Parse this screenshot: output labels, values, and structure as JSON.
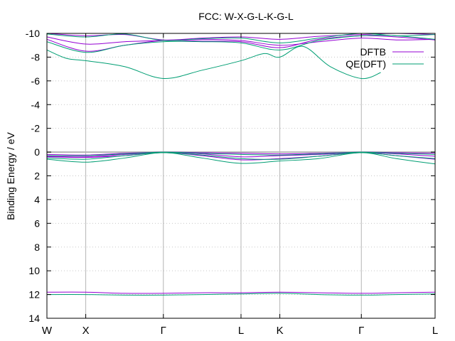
{
  "chart_data": {
    "type": "line",
    "title": "FCC: W-X-G-L-K-G-L",
    "ylabel": "Binding Energy / eV",
    "xlabel": "",
    "ylim": [
      14,
      -10
    ],
    "y_reversed": true,
    "xlim": [
      0,
      10
    ],
    "grid": true,
    "legend": "top-right",
    "y_ticks": [
      {
        "value": -10,
        "label": "-10"
      },
      {
        "value": -8,
        "label": "-8"
      },
      {
        "value": -6,
        "label": "-6"
      },
      {
        "value": -4,
        "label": "-4"
      },
      {
        "value": -2,
        "label": "-2"
      },
      {
        "value": 0,
        "label": "0"
      },
      {
        "value": 2,
        "label": "2"
      },
      {
        "value": 4,
        "label": "4"
      },
      {
        "value": 6,
        "label": "6"
      },
      {
        "value": 8,
        "label": "8"
      },
      {
        "value": 10,
        "label": "10"
      },
      {
        "value": 12,
        "label": "12"
      },
      {
        "value": 14,
        "label": "14"
      }
    ],
    "x_ticks": [
      {
        "value": 0,
        "label": "W"
      },
      {
        "value": 1,
        "label": "X"
      },
      {
        "value": 3,
        "label": "Γ"
      },
      {
        "value": 5,
        "label": "L"
      },
      {
        "value": 6,
        "label": "K"
      },
      {
        "value": 8.1,
        "label": "Γ"
      },
      {
        "value": 10,
        "label": "L"
      }
    ],
    "series": [
      {
        "name": "DFTB",
        "color": "#9400d3",
        "bands": [
          {
            "x": [
              0,
              1,
              2,
              3,
              4,
              5,
              6,
              7,
              8.1,
              9,
              10
            ],
            "y": [
              11.8,
              11.8,
              11.9,
              11.9,
              11.85,
              11.85,
              11.8,
              11.85,
              11.9,
              11.85,
              11.8
            ]
          },
          {
            "x": [
              0,
              1,
              2,
              3,
              4,
              5,
              6,
              7,
              8.1,
              9,
              10
            ],
            "y": [
              0.4,
              0.45,
              0.3,
              0.05,
              0.3,
              0.65,
              0.55,
              0.35,
              0.05,
              0.3,
              0.6
            ]
          },
          {
            "x": [
              0,
              1,
              2,
              3,
              4,
              5,
              6,
              7,
              8.1,
              9,
              10
            ],
            "y": [
              0.35,
              0.4,
              0.2,
              0.05,
              0.15,
              0.4,
              0.3,
              0.2,
              0.05,
              0.15,
              0.35
            ]
          },
          {
            "x": [
              0,
              1,
              2,
              3,
              4,
              5,
              6,
              7,
              8.1,
              9,
              10
            ],
            "y": [
              0.2,
              0.25,
              0.1,
              0.0,
              0.05,
              0.1,
              0.15,
              0.1,
              0.0,
              0.05,
              0.1
            ]
          },
          {
            "x": [
              0,
              1,
              2,
              3,
              4,
              5,
              6,
              7,
              8.1,
              9,
              10
            ],
            "y": [
              -9.7,
              -9.1,
              -9.3,
              -9.4,
              -9.5,
              -9.4,
              -9.0,
              -9.3,
              -9.6,
              -9.45,
              -9.5
            ]
          },
          {
            "x": [
              0,
              1,
              2,
              3,
              4,
              5,
              6,
              7,
              8.1,
              9,
              10
            ],
            "y": [
              -9.5,
              -8.5,
              -9.0,
              -9.4,
              -9.35,
              -9.3,
              -8.8,
              -9.5,
              -9.8,
              -9.7,
              -9.45
            ]
          },
          {
            "x": [
              0,
              1,
              2,
              3,
              4,
              5,
              6,
              7,
              8.1,
              9,
              10
            ],
            "y": [
              -10.0,
              -9.8,
              -9.9,
              -9.45,
              -9.6,
              -9.7,
              -9.5,
              -9.75,
              -9.9,
              -10.0,
              -9.9
            ]
          }
        ]
      },
      {
        "name": "QE(DFT)",
        "color": "#009e73",
        "bands": [
          {
            "x": [
              0,
              1,
              2,
              3,
              4,
              5,
              6,
              7,
              8.1,
              9,
              10
            ],
            "y": [
              12.0,
              12.0,
              12.05,
              12.05,
              12.0,
              11.95,
              11.9,
              12.0,
              12.05,
              12.0,
              11.95
            ]
          },
          {
            "x": [
              0,
              1,
              2,
              3,
              4,
              5,
              6,
              7,
              8.1,
              9,
              10
            ],
            "y": [
              0.6,
              0.85,
              0.5,
              0.05,
              0.5,
              0.95,
              0.75,
              0.55,
              0.05,
              0.55,
              1.0
            ]
          },
          {
            "x": [
              0,
              1,
              2,
              3,
              4,
              5,
              6,
              7,
              8.1,
              9,
              10
            ],
            "y": [
              0.5,
              0.6,
              0.3,
              0.05,
              0.25,
              0.55,
              0.6,
              0.35,
              0.05,
              0.3,
              0.55
            ]
          },
          {
            "x": [
              0,
              1,
              2,
              3,
              4,
              5,
              6,
              7,
              8.1,
              9,
              10
            ],
            "y": [
              0.3,
              0.3,
              0.15,
              0.0,
              0.1,
              0.2,
              0.25,
              0.15,
              0.0,
              0.1,
              0.2
            ]
          },
          {
            "x": [
              0,
              0.5,
              1,
              2,
              3,
              4,
              5,
              5.6,
              6,
              6.6,
              7.3,
              8.1,
              8.6
            ],
            "y": [
              -8.6,
              -7.9,
              -7.7,
              -7.2,
              -6.2,
              -6.9,
              -7.7,
              -8.3,
              -8.0,
              -8.9,
              -7.2,
              -6.2,
              -6.7
            ]
          },
          {
            "x": [
              0,
              1,
              2,
              3,
              4,
              5,
              6,
              7,
              8.1,
              9,
              10
            ],
            "y": [
              -9.3,
              -8.4,
              -9.0,
              -9.3,
              -9.3,
              -9.2,
              -8.6,
              -9.4,
              -9.8,
              -9.8,
              -9.5
            ]
          },
          {
            "x": [
              0,
              1,
              2,
              3,
              4,
              5,
              6,
              7,
              8.1,
              9,
              10
            ],
            "y": [
              -9.95,
              -9.7,
              -9.95,
              -9.4,
              -9.55,
              -9.6,
              -9.2,
              -9.6,
              -10.0,
              -9.8,
              -9.9
            ]
          }
        ]
      }
    ]
  }
}
